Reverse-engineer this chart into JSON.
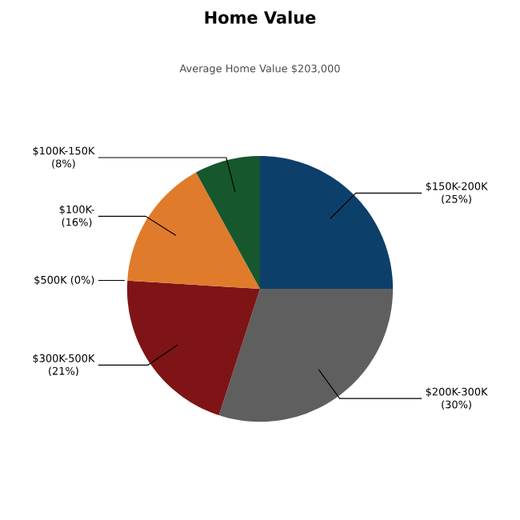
{
  "chart_data": {
    "type": "pie",
    "title": "Home Value",
    "subtitle": "Average Home Value  $203,000",
    "categories": [
      "$150K-200K",
      "$200K-300K",
      "$300K-500K",
      "$500K",
      "$100K-",
      "$100K-150K"
    ],
    "values": [
      25,
      30,
      21,
      0,
      16,
      8
    ],
    "value_labels": [
      "(25%)",
      "(30%)",
      "(21%)",
      "(0%)",
      "(16%)",
      "(8%)"
    ],
    "colors": [
      "#0d3f6b",
      "#5f5f5f",
      "#7e1416",
      "#5a1012",
      "#e07b2c",
      "#17572e"
    ]
  }
}
